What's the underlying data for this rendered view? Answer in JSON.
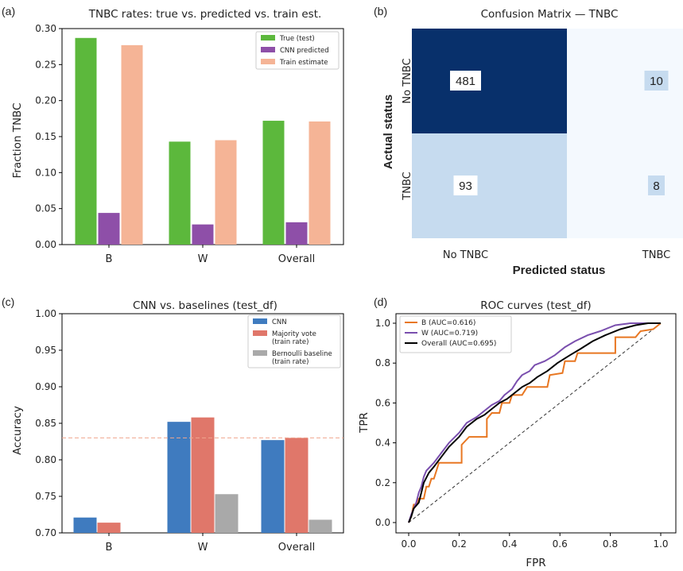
{
  "panel_labels": {
    "a": "(a)",
    "b": "(b)",
    "c": "(c)",
    "d": "(d)"
  },
  "colors": {
    "true_test": "#5cb83c",
    "cnn_predicted": "#8e4fa8",
    "train_estimate": "#f5b496",
    "cnn": "#3f7bbf",
    "majority": "#e0776a",
    "bernoulli": "#a9a9a9",
    "cm_dark": "#08306b",
    "cm_light": "#c6dbef",
    "cm_lightest": "#f4f9fe",
    "roc_b": "#e87722",
    "roc_w": "#7a4fae",
    "roc_overall": "#000000"
  },
  "chart_data": [
    {
      "id": "a",
      "type": "bar",
      "title": "TNBC rates: true vs. predicted vs. train est.",
      "xlabel": "",
      "ylabel": "Fraction TNBC",
      "categories": [
        "B",
        "W",
        "Overall"
      ],
      "ylim": [
        0,
        0.3
      ],
      "yticks": [
        "0.00",
        "0.05",
        "0.10",
        "0.15",
        "0.20",
        "0.25",
        "0.30"
      ],
      "legend_position": "top-right",
      "series": [
        {
          "name": "True (test)",
          "values": [
            0.287,
            0.143,
            0.172
          ],
          "color_key": "true_test"
        },
        {
          "name": "CNN predicted",
          "values": [
            0.044,
            0.028,
            0.031
          ],
          "color_key": "cnn_predicted"
        },
        {
          "name": "Train estimate",
          "values": [
            0.277,
            0.145,
            0.171
          ],
          "color_key": "train_estimate"
        }
      ]
    },
    {
      "id": "b",
      "type": "heatmap",
      "title": "Confusion Matrix — TNBC",
      "xlabel": "Predicted status",
      "ylabel": "Actual status",
      "x_categories": [
        "No TNBC",
        "TNBC"
      ],
      "y_categories": [
        "No TNBC",
        "TNBC"
      ],
      "values": [
        [
          481,
          10
        ],
        [
          93,
          8
        ]
      ]
    },
    {
      "id": "c",
      "type": "bar",
      "title": "CNN vs. baselines (test_df)",
      "xlabel": "",
      "ylabel": "Accuracy",
      "categories": [
        "B",
        "W",
        "Overall"
      ],
      "ylim": [
        0.7,
        1.0
      ],
      "yticks": [
        "0.70",
        "0.75",
        "0.80",
        "0.85",
        "0.90",
        "0.95",
        "1.00"
      ],
      "reference_line": 0.83,
      "legend_position": "top-right",
      "series": [
        {
          "name": "CNN",
          "values": [
            0.721,
            0.852,
            0.827
          ],
          "color_key": "cnn"
        },
        {
          "name": "Majority vote (train rate)",
          "name_lines": [
            "Majority vote",
            "(train rate)"
          ],
          "values": [
            0.714,
            0.858,
            0.83
          ],
          "color_key": "majority"
        },
        {
          "name": "Bernoulli baseline (train rate)",
          "name_lines": [
            "Bernoulli baseline",
            "(train rate)"
          ],
          "values": [
            0.7,
            0.753,
            0.718
          ],
          "color_key": "bernoulli"
        }
      ]
    },
    {
      "id": "d",
      "type": "line",
      "title": "ROC curves (test_df)",
      "xlabel": "FPR",
      "ylabel": "TPR",
      "xlim": [
        0,
        1
      ],
      "ylim": [
        0,
        1
      ],
      "xticks": [
        "0.0",
        "0.2",
        "0.4",
        "0.6",
        "0.8",
        "1.0"
      ],
      "yticks": [
        "0.0",
        "0.2",
        "0.4",
        "0.6",
        "0.8",
        "1.0"
      ],
      "legend_position": "top-left",
      "series": [
        {
          "name": "B (AUC=0.616)",
          "color_key": "roc_b",
          "points": [
            [
              0,
              0
            ],
            [
              0.01,
              0.03
            ],
            [
              0.02,
              0.09
            ],
            [
              0.03,
              0.09
            ],
            [
              0.04,
              0.12
            ],
            [
              0.06,
              0.12
            ],
            [
              0.07,
              0.18
            ],
            [
              0.08,
              0.18
            ],
            [
              0.09,
              0.22
            ],
            [
              0.1,
              0.22
            ],
            [
              0.11,
              0.26
            ],
            [
              0.12,
              0.3
            ],
            [
              0.21,
              0.3
            ],
            [
              0.21,
              0.39
            ],
            [
              0.24,
              0.43
            ],
            [
              0.31,
              0.43
            ],
            [
              0.31,
              0.52
            ],
            [
              0.33,
              0.55
            ],
            [
              0.36,
              0.55
            ],
            [
              0.37,
              0.6
            ],
            [
              0.4,
              0.6
            ],
            [
              0.41,
              0.64
            ],
            [
              0.45,
              0.64
            ],
            [
              0.47,
              0.68
            ],
            [
              0.55,
              0.68
            ],
            [
              0.56,
              0.74
            ],
            [
              0.61,
              0.75
            ],
            [
              0.62,
              0.81
            ],
            [
              0.66,
              0.81
            ],
            [
              0.67,
              0.85
            ],
            [
              0.82,
              0.85
            ],
            [
              0.82,
              0.93
            ],
            [
              0.9,
              0.93
            ],
            [
              0.92,
              0.96
            ],
            [
              0.97,
              0.97
            ],
            [
              1,
              1
            ]
          ]
        },
        {
          "name": "W (AUC=0.719)",
          "color_key": "roc_w",
          "points": [
            [
              0,
              0
            ],
            [
              0.01,
              0.04
            ],
            [
              0.02,
              0.07
            ],
            [
              0.03,
              0.1
            ],
            [
              0.04,
              0.15
            ],
            [
              0.05,
              0.18
            ],
            [
              0.06,
              0.23
            ],
            [
              0.07,
              0.26
            ],
            [
              0.1,
              0.3
            ],
            [
              0.13,
              0.35
            ],
            [
              0.16,
              0.4
            ],
            [
              0.2,
              0.45
            ],
            [
              0.23,
              0.5
            ],
            [
              0.27,
              0.53
            ],
            [
              0.3,
              0.56
            ],
            [
              0.33,
              0.59
            ],
            [
              0.36,
              0.61
            ],
            [
              0.38,
              0.64
            ],
            [
              0.41,
              0.67
            ],
            [
              0.43,
              0.71
            ],
            [
              0.45,
              0.74
            ],
            [
              0.48,
              0.76
            ],
            [
              0.5,
              0.79
            ],
            [
              0.54,
              0.81
            ],
            [
              0.58,
              0.84
            ],
            [
              0.62,
              0.88
            ],
            [
              0.66,
              0.91
            ],
            [
              0.71,
              0.94
            ],
            [
              0.76,
              0.96
            ],
            [
              0.82,
              0.99
            ],
            [
              0.88,
              1
            ],
            [
              1,
              1
            ]
          ]
        },
        {
          "name": "Overall (AUC=0.695)",
          "color_key": "roc_overall",
          "points": [
            [
              0,
              0
            ],
            [
              0.01,
              0.03
            ],
            [
              0.02,
              0.07
            ],
            [
              0.04,
              0.1
            ],
            [
              0.05,
              0.15
            ],
            [
              0.06,
              0.2
            ],
            [
              0.08,
              0.25
            ],
            [
              0.1,
              0.28
            ],
            [
              0.13,
              0.33
            ],
            [
              0.16,
              0.38
            ],
            [
              0.2,
              0.43
            ],
            [
              0.23,
              0.48
            ],
            [
              0.27,
              0.52
            ],
            [
              0.3,
              0.54
            ],
            [
              0.33,
              0.57
            ],
            [
              0.36,
              0.6
            ],
            [
              0.39,
              0.62
            ],
            [
              0.42,
              0.65
            ],
            [
              0.45,
              0.68
            ],
            [
              0.48,
              0.7
            ],
            [
              0.51,
              0.73
            ],
            [
              0.55,
              0.76
            ],
            [
              0.59,
              0.8
            ],
            [
              0.64,
              0.84
            ],
            [
              0.68,
              0.87
            ],
            [
              0.73,
              0.91
            ],
            [
              0.78,
              0.94
            ],
            [
              0.84,
              0.97
            ],
            [
              0.9,
              0.99
            ],
            [
              0.95,
              1
            ],
            [
              1,
              1
            ]
          ]
        }
      ]
    }
  ]
}
